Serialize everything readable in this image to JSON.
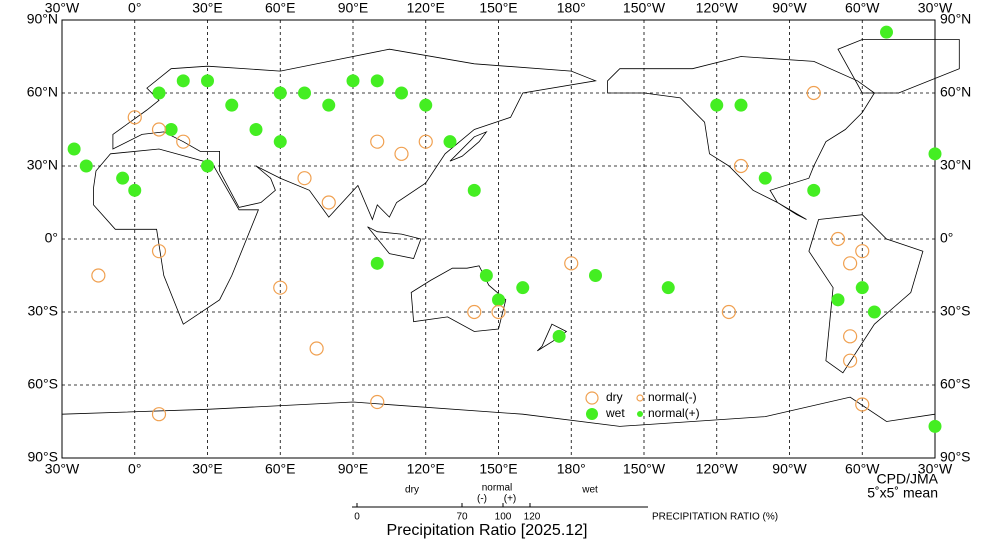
{
  "map": {
    "lon_labels": [
      "30°W",
      "0°",
      "30°E",
      "60°E",
      "90°E",
      "120°E",
      "150°E",
      "180°",
      "150°W",
      "120°W",
      "90°W",
      "60°W",
      "30°W"
    ],
    "lat_labels": [
      "90°N",
      "60°N",
      "30°N",
      "0°",
      "30°S",
      "60°S",
      "90°S"
    ],
    "legend": {
      "dry": "dry",
      "wet": "wet",
      "normal_minus": "normal(-)",
      "normal_plus": "normal(+)"
    },
    "credit": "CPD/JMA",
    "resolution": "5˚x5˚ mean"
  },
  "scale": {
    "dry": "dry",
    "normal": "normal",
    "minus": "(-)",
    "plus": "(+)",
    "wet": "wet",
    "ticks": [
      "0",
      "70",
      "100",
      "120"
    ],
    "unit_label": "PRECIPITATION RATIO  (%)",
    "title": "Precipitation Ratio [2025.12]"
  }
}
